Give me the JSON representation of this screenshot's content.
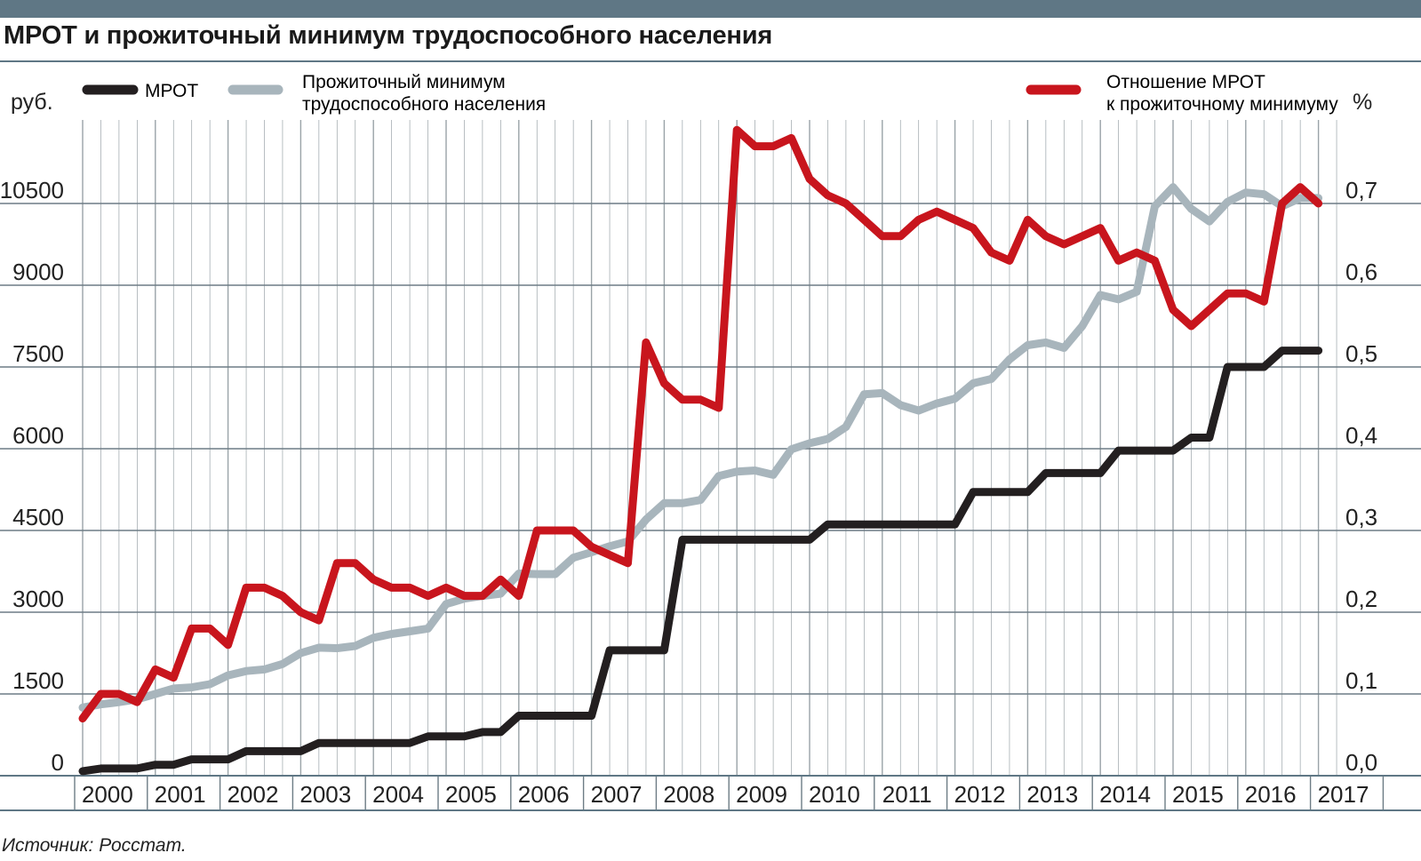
{
  "title": "МРОТ и прожиточный минимум трудоспособного населения",
  "source": "Источник: Росстат.",
  "axis_left_unit": "руб.",
  "axis_right_unit": "%",
  "colors": {
    "header": "#5f7785",
    "mrot": "#231f20",
    "pm": "#a8b5bc",
    "ratio": "#c8151d",
    "grid": "#9aa3a8"
  },
  "chart_data": {
    "type": "line",
    "title": "МРОТ и прожиточный минимум трудоспособного населения",
    "xlabel": "",
    "ylabel": "руб.",
    "y2label": "%",
    "grid": true,
    "legend_position": "top",
    "categories": [
      "2000",
      "2001",
      "2002",
      "2003",
      "2004",
      "2005",
      "2006",
      "2007",
      "2008",
      "2009",
      "2010",
      "2011",
      "2012",
      "2013",
      "2014",
      "2015",
      "2016",
      "2017"
    ],
    "ylim": [
      0,
      12000
    ],
    "yticks": [
      0,
      1500,
      3000,
      4500,
      6000,
      7500,
      9000,
      10500
    ],
    "y2lim": [
      0,
      0.8
    ],
    "y2ticks": [
      "0,0",
      "0,1",
      "0,2",
      "0,3",
      "0,4",
      "0,5",
      "0,6",
      "0,7"
    ],
    "series": [
      {
        "name": "МРОТ",
        "axis": "left",
        "color": "#231f20",
        "x": [
          2000.0,
          2000.25,
          2000.5,
          2000.75,
          2001.0,
          2001.25,
          2001.5,
          2001.75,
          2002.0,
          2002.25,
          2002.5,
          2002.75,
          2003.0,
          2003.25,
          2003.5,
          2003.75,
          2004.0,
          2004.25,
          2004.5,
          2004.75,
          2005.0,
          2005.25,
          2005.5,
          2005.75,
          2006.0,
          2006.25,
          2006.5,
          2006.75,
          2007.0,
          2007.25,
          2007.5,
          2007.75,
          2008.0,
          2008.25,
          2008.5,
          2008.75,
          2009.0,
          2009.25,
          2009.5,
          2009.75,
          2010.0,
          2010.25,
          2010.5,
          2010.75,
          2011.0,
          2011.25,
          2011.5,
          2011.75,
          2012.0,
          2012.25,
          2012.5,
          2012.75,
          2013.0,
          2013.25,
          2013.5,
          2013.75,
          2014.0,
          2014.25,
          2014.5,
          2014.75,
          2015.0,
          2015.25,
          2015.5,
          2015.75,
          2016.0,
          2016.25,
          2016.5,
          2016.75,
          2017.0
        ],
        "values": [
          83,
          132,
          132,
          132,
          200,
          200,
          300,
          300,
          300,
          450,
          450,
          450,
          450,
          600,
          600,
          600,
          600,
          600,
          600,
          720,
          720,
          720,
          800,
          800,
          1100,
          1100,
          1100,
          1100,
          1100,
          2300,
          2300,
          2300,
          2300,
          4330,
          4330,
          4330,
          4330,
          4330,
          4330,
          4330,
          4330,
          4611,
          4611,
          4611,
          4611,
          4611,
          4611,
          4611,
          4611,
          5205,
          5205,
          5205,
          5205,
          5554,
          5554,
          5554,
          5554,
          5965,
          5965,
          5965,
          5965,
          6204,
          6204,
          7500,
          7500,
          7500,
          7800,
          7800,
          7800
        ]
      },
      {
        "name": "Прожиточный минимум трудоспособного населения",
        "axis": "left",
        "color": "#a8b5bc",
        "x": [
          2000.0,
          2000.25,
          2000.5,
          2000.75,
          2001.0,
          2001.25,
          2001.5,
          2001.75,
          2002.0,
          2002.25,
          2002.5,
          2002.75,
          2003.0,
          2003.25,
          2003.5,
          2003.75,
          2004.0,
          2004.25,
          2004.5,
          2004.75,
          2005.0,
          2005.25,
          2005.5,
          2005.75,
          2006.0,
          2006.25,
          2006.5,
          2006.75,
          2007.0,
          2007.25,
          2007.5,
          2007.75,
          2008.0,
          2008.25,
          2008.5,
          2008.75,
          2009.0,
          2009.25,
          2009.5,
          2009.75,
          2010.0,
          2010.25,
          2010.5,
          2010.75,
          2011.0,
          2011.25,
          2011.5,
          2011.75,
          2012.0,
          2012.25,
          2012.5,
          2012.75,
          2013.0,
          2013.25,
          2013.5,
          2013.75,
          2014.0,
          2014.25,
          2014.5,
          2014.75,
          2015.0,
          2015.25,
          2015.5,
          2015.75,
          2016.0,
          2016.25,
          2016.5,
          2016.75,
          2017.0
        ],
        "values": [
          1250,
          1310,
          1350,
          1400,
          1500,
          1600,
          1620,
          1680,
          1840,
          1920,
          1950,
          2050,
          2250,
          2350,
          2340,
          2380,
          2530,
          2600,
          2650,
          2700,
          3150,
          3250,
          3300,
          3340,
          3710,
          3700,
          3700,
          4000,
          4100,
          4210,
          4300,
          4700,
          5000,
          5000,
          5060,
          5500,
          5580,
          5600,
          5520,
          5990,
          6100,
          6180,
          6400,
          7000,
          7020,
          6800,
          6700,
          6830,
          6920,
          7200,
          7280,
          7640,
          7900,
          7950,
          7850,
          8250,
          8820,
          8740,
          8880,
          10450,
          10800,
          10400,
          10170,
          10530,
          10700,
          10670,
          10450,
          10600,
          10600
        ]
      },
      {
        "name": "Отношение МРОТ к прожиточному минимуму",
        "axis": "right",
        "color": "#c8151d",
        "x": [
          2000.0,
          2000.25,
          2000.5,
          2000.75,
          2001.0,
          2001.25,
          2001.5,
          2001.75,
          2002.0,
          2002.25,
          2002.5,
          2002.75,
          2003.0,
          2003.25,
          2003.5,
          2003.75,
          2004.0,
          2004.25,
          2004.5,
          2004.75,
          2005.0,
          2005.25,
          2005.5,
          2005.75,
          2006.0,
          2006.25,
          2006.5,
          2006.75,
          2007.0,
          2007.25,
          2007.5,
          2007.75,
          2008.0,
          2008.25,
          2008.5,
          2008.75,
          2009.0,
          2009.25,
          2009.5,
          2009.75,
          2010.0,
          2010.25,
          2010.5,
          2010.75,
          2011.0,
          2011.25,
          2011.5,
          2011.75,
          2012.0,
          2012.25,
          2012.5,
          2012.75,
          2013.0,
          2013.25,
          2013.5,
          2013.75,
          2014.0,
          2014.25,
          2014.5,
          2014.75,
          2015.0,
          2015.25,
          2015.5,
          2015.75,
          2016.0,
          2016.25,
          2016.5,
          2016.75,
          2017.0
        ],
        "values": [
          0.07,
          0.1,
          0.1,
          0.09,
          0.13,
          0.12,
          0.18,
          0.18,
          0.16,
          0.23,
          0.23,
          0.22,
          0.2,
          0.19,
          0.26,
          0.26,
          0.24,
          0.23,
          0.23,
          0.22,
          0.23,
          0.22,
          0.22,
          0.24,
          0.22,
          0.3,
          0.3,
          0.3,
          0.28,
          0.27,
          0.26,
          0.53,
          0.48,
          0.46,
          0.46,
          0.45,
          0.79,
          0.77,
          0.77,
          0.78,
          0.73,
          0.71,
          0.7,
          0.68,
          0.66,
          0.66,
          0.68,
          0.69,
          0.68,
          0.67,
          0.64,
          0.63,
          0.68,
          0.66,
          0.65,
          0.66,
          0.67,
          0.63,
          0.64,
          0.63,
          0.57,
          0.55,
          0.57,
          0.59,
          0.59,
          0.58,
          0.7,
          0.72,
          0.7
        ]
      }
    ]
  },
  "legend": [
    {
      "label": "МРОТ"
    },
    {
      "label": "Прожиточный минимум трудоспособного населения",
      "line1": "Прожиточный минимум",
      "line2": "трудоспособного населения"
    },
    {
      "label": "Отношение МРОТ к прожиточному минимуму",
      "line1": "Отношение МРОТ",
      "line2": "к прожиточному минимуму"
    }
  ]
}
